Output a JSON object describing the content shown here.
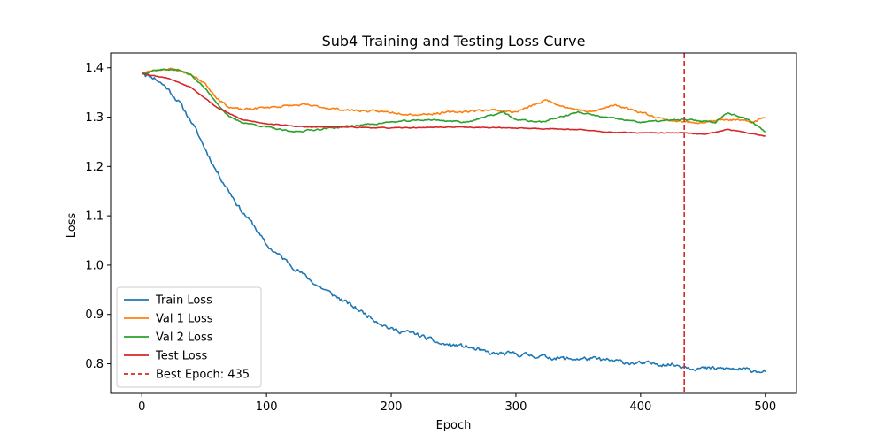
{
  "chart_data": {
    "type": "line",
    "title": "Sub4 Training and Testing Loss Curve",
    "xlabel": "Epoch",
    "ylabel": "Loss",
    "xlim": [
      -25,
      525
    ],
    "ylim": [
      0.74,
      1.43
    ],
    "xticks": [
      0,
      100,
      200,
      300,
      400,
      500
    ],
    "yticks": [
      0.8,
      0.9,
      1.0,
      1.1,
      1.2,
      1.3,
      1.4
    ],
    "ytick_format": 1,
    "grid": false,
    "legend_position": "lower-left",
    "best_epoch": 435,
    "best_epoch_label": "Best Epoch: 435",
    "best_epoch_color": "#d62728",
    "series": [
      {
        "name": "Train Loss",
        "color": "#1f77b4",
        "noise": 0.008,
        "seed": 11,
        "x": [
          0,
          10,
          20,
          30,
          40,
          50,
          60,
          70,
          80,
          90,
          100,
          120,
          140,
          160,
          180,
          200,
          220,
          240,
          260,
          280,
          300,
          320,
          340,
          360,
          380,
          400,
          420,
          435,
          450,
          470,
          500
        ],
        "y": [
          1.39,
          1.38,
          1.36,
          1.33,
          1.29,
          1.24,
          1.19,
          1.15,
          1.11,
          1.08,
          1.04,
          1.0,
          0.96,
          0.93,
          0.9,
          0.87,
          0.86,
          0.84,
          0.835,
          0.82,
          0.82,
          0.815,
          0.81,
          0.81,
          0.805,
          0.8,
          0.8,
          0.795,
          0.79,
          0.79,
          0.785
        ]
      },
      {
        "name": "Val 1 Loss",
        "color": "#ff7f0e",
        "noise": 0.004,
        "seed": 23,
        "x": [
          0,
          10,
          20,
          30,
          40,
          50,
          60,
          70,
          80,
          100,
          130,
          160,
          200,
          220,
          250,
          280,
          300,
          325,
          340,
          360,
          380,
          400,
          420,
          435,
          450,
          470,
          490,
          500
        ],
        "y": [
          1.388,
          1.395,
          1.398,
          1.395,
          1.385,
          1.37,
          1.34,
          1.32,
          1.315,
          1.32,
          1.325,
          1.315,
          1.31,
          1.305,
          1.31,
          1.315,
          1.31,
          1.335,
          1.32,
          1.31,
          1.325,
          1.31,
          1.295,
          1.29,
          1.29,
          1.295,
          1.29,
          1.3
        ]
      },
      {
        "name": "Val 2 Loss",
        "color": "#2ca02c",
        "noise": 0.003,
        "seed": 37,
        "x": [
          0,
          10,
          20,
          30,
          40,
          50,
          60,
          70,
          80,
          100,
          120,
          140,
          160,
          200,
          230,
          260,
          290,
          300,
          320,
          350,
          370,
          400,
          435,
          460,
          470,
          490,
          500
        ],
        "y": [
          1.388,
          1.395,
          1.397,
          1.395,
          1.385,
          1.36,
          1.33,
          1.3,
          1.29,
          1.28,
          1.27,
          1.275,
          1.28,
          1.29,
          1.295,
          1.29,
          1.31,
          1.295,
          1.29,
          1.31,
          1.3,
          1.29,
          1.295,
          1.29,
          1.31,
          1.29,
          1.27
        ]
      },
      {
        "name": "Test Loss",
        "color": "#d62728",
        "noise": 0.0015,
        "seed": 53,
        "x": [
          0,
          20,
          40,
          60,
          80,
          100,
          130,
          160,
          200,
          250,
          300,
          350,
          370,
          400,
          435,
          450,
          470,
          500
        ],
        "y": [
          1.388,
          1.38,
          1.36,
          1.32,
          1.295,
          1.287,
          1.28,
          1.28,
          1.278,
          1.28,
          1.278,
          1.275,
          1.27,
          1.268,
          1.268,
          1.265,
          1.275,
          1.262
        ]
      }
    ]
  }
}
